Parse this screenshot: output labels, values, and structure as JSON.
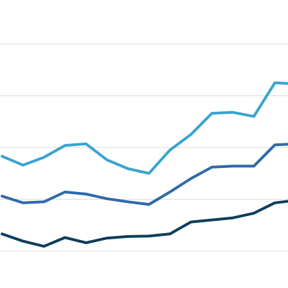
{
  "chart_data": {
    "type": "line",
    "categories": [
      null,
      null,
      null,
      null,
      null,
      null,
      null,
      null,
      null,
      null,
      null,
      null,
      null,
      null,
      null
    ],
    "series": [
      {
        "color": "#3aa3d0",
        "values": [
          2.83,
          2.66,
          2.81,
          3.04,
          3.07,
          2.76,
          2.59,
          2.5,
          2.95,
          3.25,
          3.66,
          3.68,
          3.6,
          4.25,
          4.23
        ]
      },
      {
        "color": "#2e6aa8",
        "values": [
          2.06,
          1.93,
          1.95,
          2.14,
          2.1,
          2.01,
          1.95,
          1.9,
          2.14,
          2.4,
          2.62,
          2.64,
          2.64,
          3.05,
          3.07
        ]
      },
      {
        "color": "#0f3d5c",
        "values": [
          1.33,
          1.19,
          1.09,
          1.26,
          1.16,
          1.25,
          1.28,
          1.29,
          1.33,
          1.56,
          1.6,
          1.64,
          1.73,
          1.93,
          1.98
        ]
      }
    ],
    "ylim": [
      0.285,
      5.85
    ],
    "yticks": [
      1,
      2,
      3,
      4,
      5
    ],
    "grid": true
  }
}
